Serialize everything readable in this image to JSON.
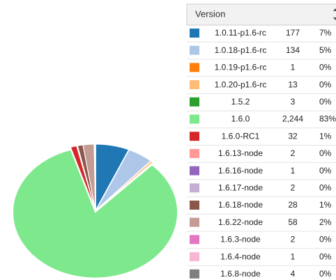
{
  "chart_data": {
    "type": "pie",
    "column_header": "Version",
    "categories": [
      "1.0.11-p1.6-rc",
      "1.0.18-p1.6-rc",
      "1.0.19-p1.6-rc",
      "1.0.20-p1.6-rc",
      "1.5.2",
      "1.6.0",
      "1.6.0-RC1",
      "1.6.13-node",
      "1.6.16-node",
      "1.6.17-node",
      "1.6.18-node",
      "1.6.22-node",
      "1.6.3-node",
      "1.6.4-node",
      "1.6.8-node"
    ],
    "values": [
      177,
      134,
      1,
      13,
      3,
      2244,
      32,
      2,
      1,
      2,
      28,
      58,
      2,
      1,
      4
    ],
    "value_labels": [
      "177",
      "134",
      "1",
      "13",
      "3",
      "2,244",
      "32",
      "2",
      "1",
      "2",
      "28",
      "58",
      "2",
      "1",
      "4"
    ],
    "percent_labels": [
      "7%",
      "5%",
      "0%",
      "0%",
      "0%",
      "83%",
      "1%",
      "0%",
      "0%",
      "0%",
      "1%",
      "2%",
      "0%",
      "0%",
      "0%"
    ],
    "colors": [
      "#1f77b4",
      "#aec7e8",
      "#ff7f0e",
      "#ffbb78",
      "#2ca02c",
      "#7ee88c",
      "#d62728",
      "#ff9896",
      "#9467bd",
      "#c5b0d5",
      "#8c564b",
      "#c49c94",
      "#e377c2",
      "#f7b6d2",
      "#7f7f7f"
    ]
  }
}
